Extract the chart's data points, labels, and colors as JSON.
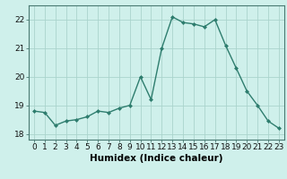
{
  "x": [
    0,
    1,
    2,
    3,
    4,
    5,
    6,
    7,
    8,
    9,
    10,
    11,
    12,
    13,
    14,
    15,
    16,
    17,
    18,
    19,
    20,
    21,
    22,
    23
  ],
  "y": [
    18.8,
    18.75,
    18.3,
    18.45,
    18.5,
    18.6,
    18.8,
    18.75,
    18.9,
    19.0,
    20.0,
    19.2,
    21.0,
    22.1,
    21.9,
    21.85,
    21.75,
    22.0,
    21.1,
    20.3,
    19.5,
    19.0,
    18.45,
    18.2
  ],
  "line_color": "#2e7d6e",
  "marker": "D",
  "marker_size": 2.0,
  "background_color": "#cff0eb",
  "grid_color": "#aad4cc",
  "xlabel": "Humidex (Indice chaleur)",
  "ylim": [
    17.8,
    22.5
  ],
  "xlim": [
    -0.5,
    23.5
  ],
  "yticks": [
    18,
    19,
    20,
    21,
    22
  ],
  "xticks": [
    0,
    1,
    2,
    3,
    4,
    5,
    6,
    7,
    8,
    9,
    10,
    11,
    12,
    13,
    14,
    15,
    16,
    17,
    18,
    19,
    20,
    21,
    22,
    23
  ],
  "tick_fontsize": 6.5,
  "xlabel_fontsize": 7.5,
  "line_width": 1.0,
  "spine_color": "#4a7a72"
}
